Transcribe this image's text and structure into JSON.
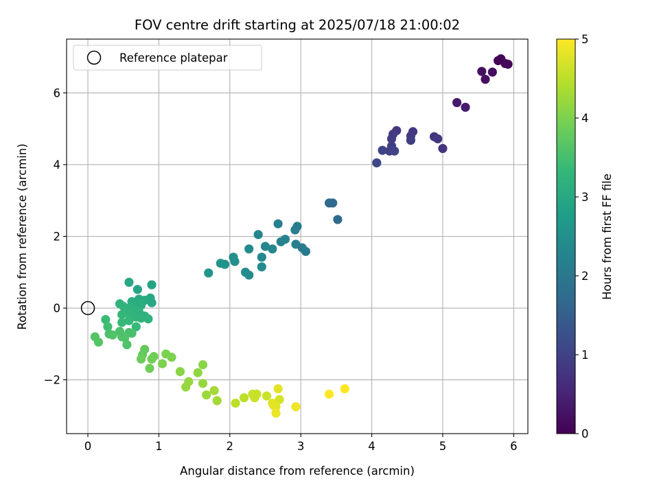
{
  "chart_data": {
    "type": "scatter",
    "title": "FOV centre drift starting at 2025/07/18 21:00:02",
    "xlabel": "Angular distance from reference (arcmin)",
    "ylabel": "Rotation from reference (arcmin)",
    "xlim": [
      -0.3,
      6.2
    ],
    "ylim": [
      -3.5,
      7.5
    ],
    "x_ticks": [
      0,
      1,
      2,
      3,
      4,
      5,
      6
    ],
    "y_ticks": [
      -2,
      0,
      2,
      4,
      6
    ],
    "y_tick_labels": [
      "−2",
      "0",
      "2",
      "4",
      "6"
    ],
    "grid": true,
    "legend": {
      "position": "top-left",
      "entries": [
        "Reference platepar"
      ]
    },
    "reference_point": {
      "name": "Reference platepar",
      "x": 0,
      "y": 0,
      "marker": "open-circle"
    },
    "colorbar": {
      "label": "Hours from first FF file",
      "range": [
        0,
        5
      ],
      "ticks": [
        0,
        1,
        2,
        3,
        4,
        5
      ],
      "colormap": "viridis",
      "colormap_stops": [
        "#440154",
        "#482878",
        "#3e4989",
        "#31688e",
        "#26828e",
        "#1f9e89",
        "#35b779",
        "#6ece58",
        "#b5de2b",
        "#fde725"
      ]
    },
    "points": [
      {
        "x": 5.78,
        "y": 6.9,
        "c": 0.02
      },
      {
        "x": 5.82,
        "y": 6.95,
        "c": 0.05
      },
      {
        "x": 5.88,
        "y": 6.82,
        "c": 0.08
      },
      {
        "x": 5.92,
        "y": 6.8,
        "c": 0.1
      },
      {
        "x": 5.55,
        "y": 6.6,
        "c": 0.2
      },
      {
        "x": 5.7,
        "y": 6.58,
        "c": 0.18
      },
      {
        "x": 5.6,
        "y": 6.38,
        "c": 0.22
      },
      {
        "x": 5.2,
        "y": 5.73,
        "c": 0.35
      },
      {
        "x": 5.32,
        "y": 5.6,
        "c": 0.38
      },
      {
        "x": 4.35,
        "y": 4.95,
        "c": 0.8
      },
      {
        "x": 4.58,
        "y": 4.92,
        "c": 0.82
      },
      {
        "x": 4.3,
        "y": 4.85,
        "c": 0.85
      },
      {
        "x": 4.55,
        "y": 4.8,
        "c": 0.88
      },
      {
        "x": 4.28,
        "y": 4.72,
        "c": 0.9
      },
      {
        "x": 4.88,
        "y": 4.78,
        "c": 0.78
      },
      {
        "x": 4.93,
        "y": 4.72,
        "c": 0.8
      },
      {
        "x": 4.55,
        "y": 4.68,
        "c": 0.92
      },
      {
        "x": 4.28,
        "y": 4.52,
        "c": 0.95
      },
      {
        "x": 5.0,
        "y": 4.45,
        "c": 0.75
      },
      {
        "x": 4.15,
        "y": 4.4,
        "c": 1.0
      },
      {
        "x": 4.25,
        "y": 4.38,
        "c": 1.0
      },
      {
        "x": 4.32,
        "y": 4.38,
        "c": 1.02
      },
      {
        "x": 4.07,
        "y": 4.05,
        "c": 1.1
      },
      {
        "x": 3.4,
        "y": 2.93,
        "c": 1.7
      },
      {
        "x": 3.45,
        "y": 2.93,
        "c": 1.72
      },
      {
        "x": 3.52,
        "y": 2.47,
        "c": 1.75
      },
      {
        "x": 2.68,
        "y": 2.35,
        "c": 2.2
      },
      {
        "x": 2.95,
        "y": 2.28,
        "c": 2.1
      },
      {
        "x": 2.92,
        "y": 2.18,
        "c": 2.12
      },
      {
        "x": 2.4,
        "y": 2.05,
        "c": 2.3
      },
      {
        "x": 2.78,
        "y": 1.92,
        "c": 2.25
      },
      {
        "x": 2.72,
        "y": 1.85,
        "c": 2.25
      },
      {
        "x": 2.93,
        "y": 1.78,
        "c": 2.18
      },
      {
        "x": 2.5,
        "y": 1.72,
        "c": 2.3
      },
      {
        "x": 2.6,
        "y": 1.65,
        "c": 2.32
      },
      {
        "x": 3.02,
        "y": 1.68,
        "c": 2.1
      },
      {
        "x": 2.27,
        "y": 1.65,
        "c": 2.4
      },
      {
        "x": 3.07,
        "y": 1.58,
        "c": 2.05
      },
      {
        "x": 2.05,
        "y": 1.42,
        "c": 2.5
      },
      {
        "x": 2.45,
        "y": 1.42,
        "c": 2.35
      },
      {
        "x": 2.07,
        "y": 1.3,
        "c": 2.5
      },
      {
        "x": 1.87,
        "y": 1.25,
        "c": 2.55
      },
      {
        "x": 1.93,
        "y": 1.22,
        "c": 2.55
      },
      {
        "x": 2.45,
        "y": 1.15,
        "c": 2.38
      },
      {
        "x": 1.7,
        "y": 0.98,
        "c": 2.6
      },
      {
        "x": 2.22,
        "y": 1.0,
        "c": 2.45
      },
      {
        "x": 2.27,
        "y": 0.92,
        "c": 2.45
      },
      {
        "x": 0.58,
        "y": 0.72,
        "c": 3.0
      },
      {
        "x": 0.9,
        "y": 0.65,
        "c": 2.9
      },
      {
        "x": 0.7,
        "y": 0.52,
        "c": 2.95
      },
      {
        "x": 0.88,
        "y": 0.28,
        "c": 3.0
      },
      {
        "x": 0.72,
        "y": 0.25,
        "c": 3.05
      },
      {
        "x": 0.8,
        "y": 0.22,
        "c": 3.05
      },
      {
        "x": 0.62,
        "y": 0.18,
        "c": 3.1
      },
      {
        "x": 0.68,
        "y": 0.15,
        "c": 3.1
      },
      {
        "x": 0.9,
        "y": 0.15,
        "c": 3.0
      },
      {
        "x": 0.45,
        "y": 0.12,
        "c": 3.2
      },
      {
        "x": 0.75,
        "y": 0.08,
        "c": 3.1
      },
      {
        "x": 0.5,
        "y": 0.05,
        "c": 3.25
      },
      {
        "x": 0.6,
        "y": 0.02,
        "c": 3.2
      },
      {
        "x": 0.65,
        "y": -0.05,
        "c": 3.2
      },
      {
        "x": 0.72,
        "y": -0.1,
        "c": 3.2
      },
      {
        "x": 0.55,
        "y": -0.12,
        "c": 3.25
      },
      {
        "x": 0.48,
        "y": -0.18,
        "c": 3.3
      },
      {
        "x": 0.62,
        "y": -0.2,
        "c": 3.25
      },
      {
        "x": 0.8,
        "y": -0.22,
        "c": 3.2
      },
      {
        "x": 0.68,
        "y": -0.25,
        "c": 3.25
      },
      {
        "x": 0.75,
        "y": -0.28,
        "c": 3.25
      },
      {
        "x": 0.85,
        "y": -0.3,
        "c": 3.2
      },
      {
        "x": 0.58,
        "y": -0.35,
        "c": 3.3
      },
      {
        "x": 0.48,
        "y": -0.4,
        "c": 3.35
      },
      {
        "x": 0.25,
        "y": -0.32,
        "c": 3.4
      },
      {
        "x": 0.68,
        "y": -0.52,
        "c": 3.35
      },
      {
        "x": 0.28,
        "y": -0.52,
        "c": 3.45
      },
      {
        "x": 0.45,
        "y": -0.65,
        "c": 3.55
      },
      {
        "x": 0.58,
        "y": -0.68,
        "c": 3.55
      },
      {
        "x": 0.62,
        "y": -0.7,
        "c": 3.55
      },
      {
        "x": 0.3,
        "y": -0.72,
        "c": 3.55
      },
      {
        "x": 0.35,
        "y": -0.75,
        "c": 3.6
      },
      {
        "x": 0.48,
        "y": -0.8,
        "c": 3.6
      },
      {
        "x": 0.52,
        "y": -0.82,
        "c": 3.6
      },
      {
        "x": 0.1,
        "y": -0.8,
        "c": 3.65
      },
      {
        "x": 0.15,
        "y": -0.95,
        "c": 3.65
      },
      {
        "x": 0.55,
        "y": -1.02,
        "c": 3.6
      },
      {
        "x": 0.8,
        "y": -1.15,
        "c": 3.8
      },
      {
        "x": 1.1,
        "y": -1.28,
        "c": 4.0
      },
      {
        "x": 0.77,
        "y": -1.3,
        "c": 3.8
      },
      {
        "x": 0.93,
        "y": -1.35,
        "c": 3.9
      },
      {
        "x": 1.18,
        "y": -1.37,
        "c": 4.0
      },
      {
        "x": 0.9,
        "y": -1.42,
        "c": 3.9
      },
      {
        "x": 0.75,
        "y": -1.42,
        "c": 3.85
      },
      {
        "x": 1.05,
        "y": -1.55,
        "c": 4.0
      },
      {
        "x": 1.62,
        "y": -1.58,
        "c": 4.1
      },
      {
        "x": 0.87,
        "y": -1.68,
        "c": 3.9
      },
      {
        "x": 1.3,
        "y": -1.77,
        "c": 4.1
      },
      {
        "x": 1.55,
        "y": -1.8,
        "c": 4.15
      },
      {
        "x": 1.42,
        "y": -2.05,
        "c": 4.2
      },
      {
        "x": 1.62,
        "y": -2.1,
        "c": 4.2
      },
      {
        "x": 1.38,
        "y": -2.2,
        "c": 4.2
      },
      {
        "x": 1.78,
        "y": -2.3,
        "c": 4.3
      },
      {
        "x": 1.67,
        "y": -2.42,
        "c": 4.25
      },
      {
        "x": 1.82,
        "y": -2.58,
        "c": 4.3
      },
      {
        "x": 2.2,
        "y": -2.5,
        "c": 4.5
      },
      {
        "x": 2.32,
        "y": -2.4,
        "c": 4.6
      },
      {
        "x": 2.38,
        "y": -2.4,
        "c": 4.6
      },
      {
        "x": 2.52,
        "y": -2.45,
        "c": 4.6
      },
      {
        "x": 2.68,
        "y": -2.25,
        "c": 4.8
      },
      {
        "x": 2.35,
        "y": -2.5,
        "c": 4.6
      },
      {
        "x": 2.7,
        "y": -2.55,
        "c": 4.7
      },
      {
        "x": 2.08,
        "y": -2.65,
        "c": 4.5
      },
      {
        "x": 2.6,
        "y": -2.65,
        "c": 4.8
      },
      {
        "x": 2.62,
        "y": -2.72,
        "c": 4.8
      },
      {
        "x": 2.65,
        "y": -2.75,
        "c": 4.8
      },
      {
        "x": 2.93,
        "y": -2.75,
        "c": 4.9
      },
      {
        "x": 2.65,
        "y": -2.93,
        "c": 4.85
      },
      {
        "x": 3.4,
        "y": -2.4,
        "c": 5.0
      },
      {
        "x": 3.62,
        "y": -2.25,
        "c": 5.0
      }
    ]
  }
}
